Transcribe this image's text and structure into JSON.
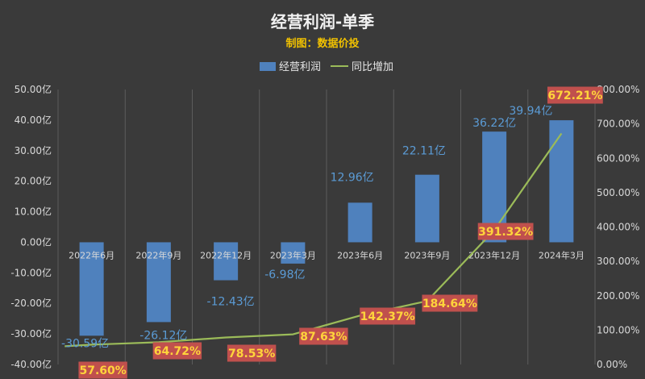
{
  "chart_data": {
    "type": "bar+line",
    "title": "经营利润-单季",
    "subtitle": "制图：数据价投",
    "categories": [
      "2022年6月",
      "2022年9月",
      "2022年12月",
      "2023年3月",
      "2023年6月",
      "2023年9月",
      "2023年12月",
      "2024年3月"
    ],
    "series": [
      {
        "name": "经营利润",
        "type": "bar",
        "axis": "left",
        "values": [
          -30.59,
          -26.12,
          -12.43,
          -6.98,
          12.96,
          22.11,
          36.22,
          39.94
        ],
        "labels": [
          "-30.59亿",
          "-26.12亿",
          "-12.43亿",
          "-6.98亿",
          "12.96亿",
          "22.11亿",
          "36.22亿",
          "39.94亿"
        ],
        "color": "#4f81bd"
      },
      {
        "name": "同比增加",
        "type": "line",
        "axis": "right",
        "values": [
          57.6,
          64.72,
          78.53,
          87.63,
          142.37,
          184.64,
          391.32,
          672.21
        ],
        "labels": [
          "57.60%",
          "64.72%",
          "78.53%",
          "87.63%",
          "142.37%",
          "184.64%",
          "391.32%",
          "672.21%"
        ],
        "color": "#9bbb59"
      }
    ],
    "y_left": {
      "min": -40,
      "max": 50,
      "step": 10,
      "tick_labels": [
        "-40.00亿",
        "-30.00亿",
        "-20.00亿",
        "-10.00亿",
        "0.00亿",
        "10.00亿",
        "20.00亿",
        "30.00亿",
        "40.00亿",
        "50.00亿"
      ]
    },
    "y_right": {
      "min": 0,
      "max": 800,
      "step": 100,
      "tick_labels": [
        "0.00%",
        "100.00%",
        "200.00%",
        "300.00%",
        "400.00%",
        "500.00%",
        "600.00%",
        "700.00%",
        "800.00%"
      ]
    },
    "legend": {
      "position": "top",
      "items": [
        {
          "label": "经营利润",
          "symbol": "box",
          "color": "#4f81bd"
        },
        {
          "label": "同比增加",
          "symbol": "line",
          "color": "#9bbb59"
        }
      ]
    },
    "grid": "vertical",
    "colors": {
      "background": "#3a3a3a",
      "bar_label": "#5b9bd5",
      "pct_label_text": "#ffd43b",
      "pct_label_box": "#c0504d",
      "subtitle": "#f2c200"
    }
  }
}
